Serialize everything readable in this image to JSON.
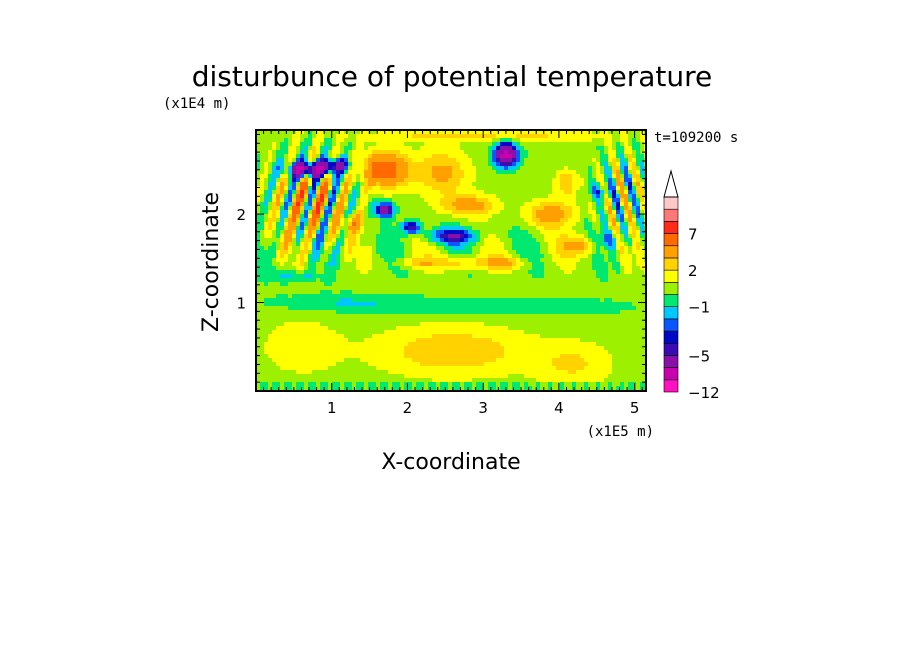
{
  "chart_data": {
    "type": "heatmap",
    "title": "disturbunce of potential temperature",
    "xlabel": "X-coordinate",
    "ylabel": "Z-coordinate",
    "x_scale_label": "(x1E5 m)",
    "y_scale_label": "(x1E4 m)",
    "time_label": "t=109200 s",
    "xlim": [
      0,
      5.15
    ],
    "ylim": [
      0,
      2.95
    ],
    "x_ticks": [
      "1",
      "2",
      "3",
      "4",
      "5"
    ],
    "y_ticks": [
      "1",
      "2"
    ],
    "colorbar": {
      "levels_bottom_to_top": [
        -12,
        -11,
        -8,
        -5,
        -4,
        -3,
        -2,
        -1,
        0,
        1,
        2,
        3,
        5,
        7,
        9,
        11
      ],
      "tick_labels": [
        "-12",
        "-5",
        "-1",
        "2",
        "7"
      ],
      "colors_bottom_to_top": [
        "#ff10c0",
        "#c800b0",
        "#8a10a8",
        "#3a0cb4",
        "#0008c8",
        "#0a56ff",
        "#00c8ff",
        "#00e870",
        "#9cf000",
        "#ffff00",
        "#ffd200",
        "#ffa000",
        "#ff6a00",
        "#ff2a18",
        "#ff7878",
        "#ffc8c8"
      ],
      "extend": "max"
    }
  }
}
